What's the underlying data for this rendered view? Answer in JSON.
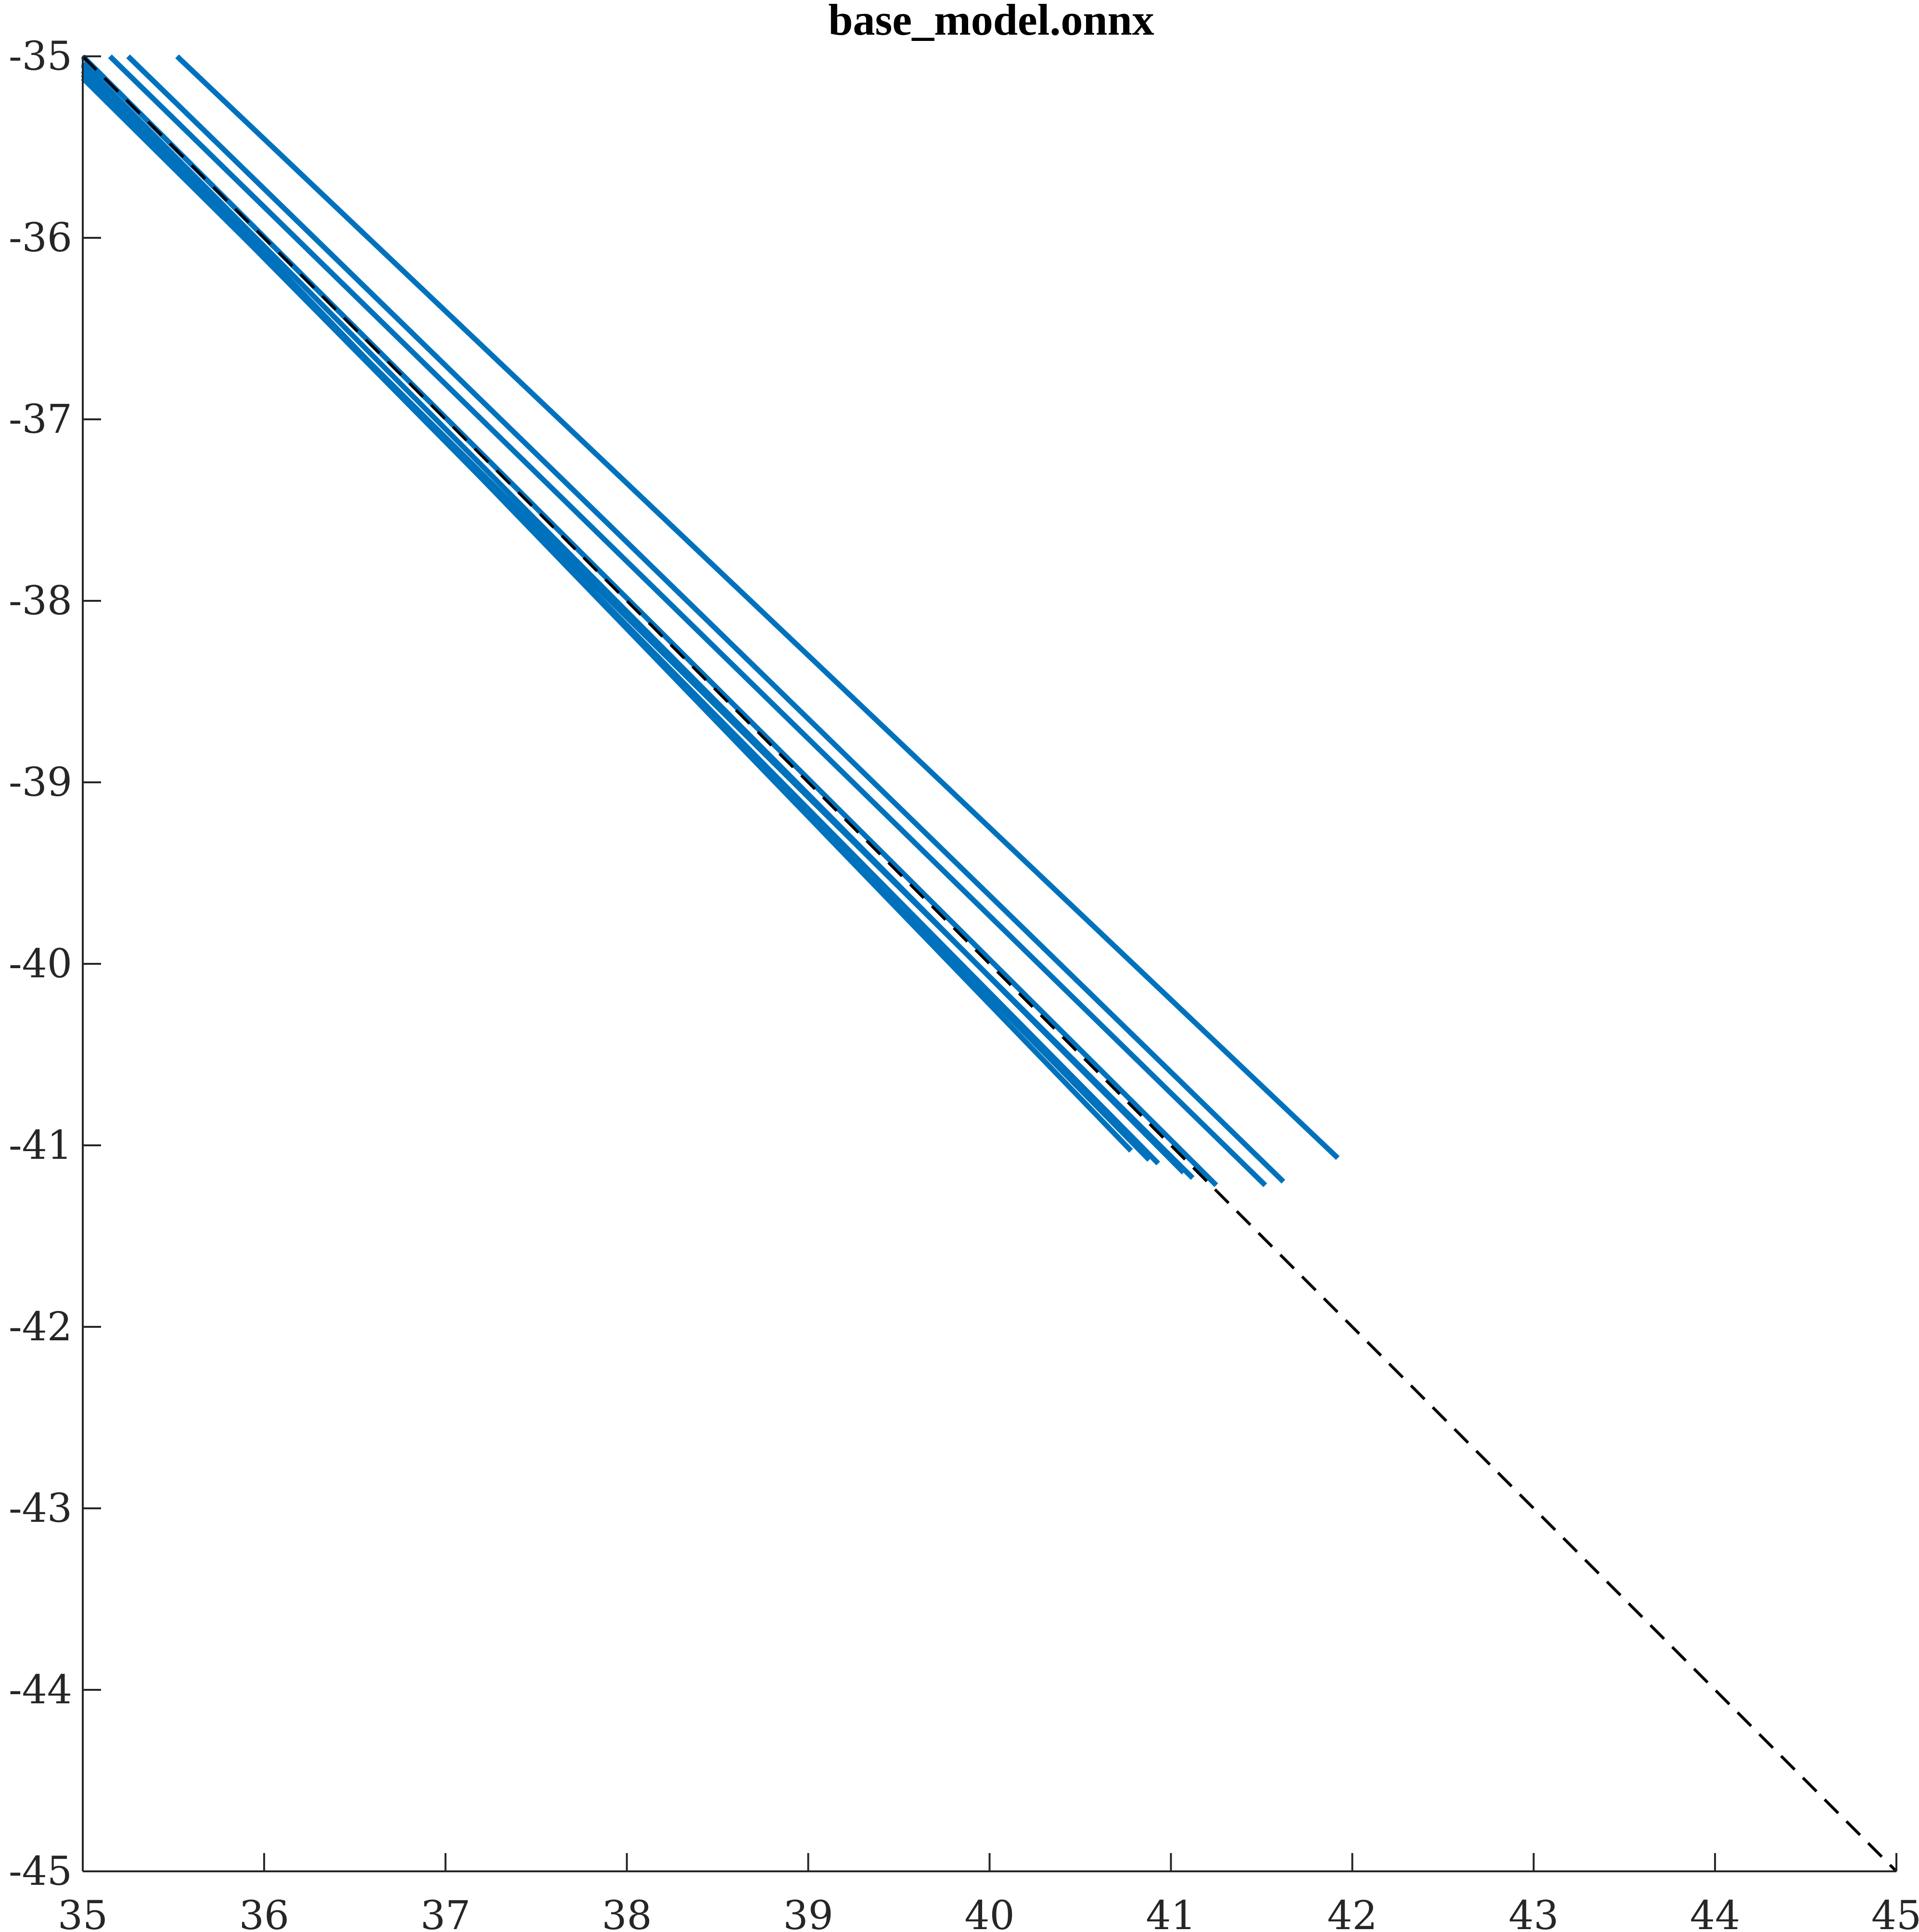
{
  "chart_data": {
    "type": "line",
    "title": "base_model.onnx",
    "xlabel": "",
    "ylabel": "",
    "xlim": [
      35,
      45
    ],
    "ylim": [
      -45,
      -35
    ],
    "x_ticks": [
      "35",
      "36",
      "37",
      "38",
      "39",
      "40",
      "41",
      "42",
      "43",
      "44",
      "45"
    ],
    "y_ticks": [
      "-35",
      "-36",
      "-37",
      "-38",
      "-39",
      "-40",
      "-41",
      "-42",
      "-43",
      "-44",
      "-45"
    ],
    "grid": false,
    "legend": "none",
    "colors": {
      "series": "#0072BD",
      "reference": "#000000",
      "axes": "#262626"
    },
    "series": [
      {
        "x": [
          35.0,
          40.78
        ],
        "y": [
          -35.05,
          -41.03
        ]
      },
      {
        "x": [
          35.0,
          40.88
        ],
        "y": [
          -35.08,
          -41.08
        ]
      },
      {
        "x": [
          35.0,
          40.93
        ],
        "y": [
          -35.1,
          -41.1
        ]
      },
      {
        "x": [
          35.0,
          41.07
        ],
        "y": [
          -35.04,
          -41.15
        ]
      },
      {
        "x": [
          35.0,
          41.12
        ],
        "y": [
          -35.12,
          -41.18
        ]
      },
      {
        "x": [
          35.0,
          41.25
        ],
        "y": [
          -35.0,
          -41.22
        ]
      },
      {
        "x": [
          35.15,
          41.52
        ],
        "y": [
          -35.0,
          -41.22
        ]
      },
      {
        "x": [
          35.25,
          41.62
        ],
        "y": [
          -35.0,
          -41.2
        ]
      },
      {
        "x": [
          35.52,
          41.92
        ],
        "y": [
          -35.0,
          -41.07
        ]
      }
    ],
    "reference_line": {
      "x": [
        35,
        45
      ],
      "y": [
        -35,
        -45
      ],
      "style": "dashed"
    }
  }
}
